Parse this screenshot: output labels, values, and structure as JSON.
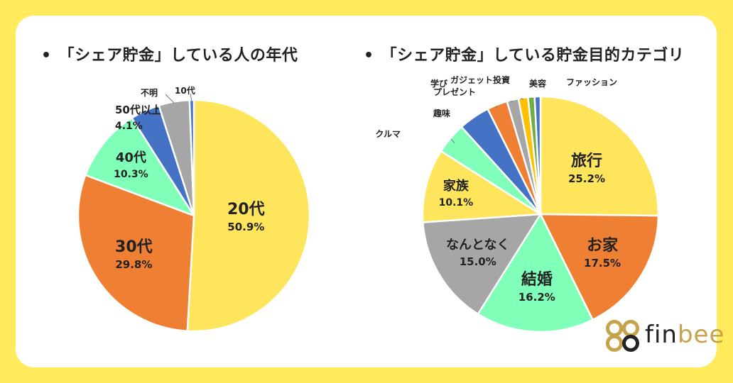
{
  "chart_data": [
    {
      "type": "pie",
      "title": "「シェア貯金」している人の年代",
      "slices": [
        {
          "label": "20代",
          "value": 50.9,
          "display": "50.9%",
          "color": "#FFE55C"
        },
        {
          "label": "30代",
          "value": 29.8,
          "display": "29.8%",
          "color": "#EF7F33"
        },
        {
          "label": "40代",
          "value": 10.3,
          "display": "10.3%",
          "color": "#7FFFB8"
        },
        {
          "label": "50代以上",
          "value": 4.1,
          "display": "4.1%",
          "color": "#4472C4"
        },
        {
          "label": "不明",
          "value": 4.3,
          "display": "",
          "color": "#A6A6A6"
        },
        {
          "label": "10代",
          "value": 0.6,
          "display": "",
          "color": "#4472C4"
        }
      ]
    },
    {
      "type": "pie",
      "title": "「シェア貯金」している貯金目的カテゴリ",
      "slices": [
        {
          "label": "旅行",
          "value": 25.2,
          "display": "25.2%",
          "color": "#FFE55C"
        },
        {
          "label": "お家",
          "value": 17.5,
          "display": "17.5%",
          "color": "#EF7F33"
        },
        {
          "label": "結婚",
          "value": 16.2,
          "display": "16.2%",
          "color": "#7FFFB8"
        },
        {
          "label": "なんとなく",
          "value": 15.0,
          "display": "15.0%",
          "color": "#A6A6A6"
        },
        {
          "label": "家族",
          "value": 10.1,
          "display": "10.1%",
          "color": "#FFE55C"
        },
        {
          "label": "クルマ",
          "value": 4.3,
          "display": "",
          "color": "#7FFFB8"
        },
        {
          "label": "趣味",
          "value": 4.3,
          "display": "",
          "color": "#4472C4"
        },
        {
          "label": "プレゼント",
          "value": 2.8,
          "display": "",
          "color": "#EF7F33"
        },
        {
          "label": "学び",
          "value": 1.6,
          "display": "",
          "color": "#A6A6A6"
        },
        {
          "label": "ガジェット投資",
          "value": 1.3,
          "display": "",
          "color": "#FFC000"
        },
        {
          "label": "美容",
          "value": 0.9,
          "display": "",
          "color": "#70AD47"
        },
        {
          "label": "ファッション",
          "value": 0.8,
          "display": "",
          "color": "#4472C4"
        }
      ]
    }
  ],
  "logo": {
    "text_a": "fin",
    "text_b": "bee"
  }
}
